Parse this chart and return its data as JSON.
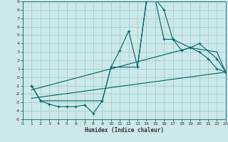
{
  "xlabel": "Humidex (Indice chaleur)",
  "bg_color": "#cce8e8",
  "line_color": "#006666",
  "grid_color": "#99cccc",
  "xlim": [
    0,
    23
  ],
  "ylim": [
    -5,
    9
  ],
  "xticks": [
    0,
    1,
    2,
    3,
    4,
    5,
    6,
    7,
    8,
    9,
    10,
    11,
    12,
    13,
    14,
    15,
    16,
    17,
    18,
    19,
    20,
    21,
    22,
    23
  ],
  "yticks": [
    -5,
    -4,
    -3,
    -2,
    -1,
    0,
    1,
    2,
    3,
    4,
    5,
    6,
    7,
    8,
    9
  ],
  "lines": [
    {
      "x": [
        1,
        2,
        3,
        4,
        5,
        6,
        7,
        8,
        9,
        10,
        11,
        12,
        13,
        14,
        15,
        16,
        17,
        18,
        19,
        20,
        21,
        22,
        23
      ],
      "y": [
        -1,
        -2.8,
        -3.2,
        -3.5,
        -3.5,
        -3.5,
        -3.3,
        -4.3,
        -2.8,
        1.2,
        3.2,
        5.5,
        1.2,
        9.0,
        9.3,
        8.0,
        4.5,
        3.2,
        3.5,
        3.0,
        2.2,
        1.0,
        0.6
      ],
      "marker": "+"
    },
    {
      "x": [
        1,
        2,
        9,
        10,
        13,
        14,
        15,
        16,
        17,
        19,
        20,
        22,
        23
      ],
      "y": [
        -1,
        -2.8,
        -2.8,
        1.2,
        1.2,
        9.0,
        9.3,
        4.5,
        4.5,
        3.5,
        4.0,
        2.2,
        0.6
      ],
      "marker": "+"
    },
    {
      "x": [
        1,
        23
      ],
      "y": [
        -2.5,
        0.6
      ],
      "marker": null
    },
    {
      "x": [
        1,
        19,
        22,
        23
      ],
      "y": [
        -1.5,
        3.5,
        3.0,
        0.6
      ],
      "marker": null
    }
  ]
}
